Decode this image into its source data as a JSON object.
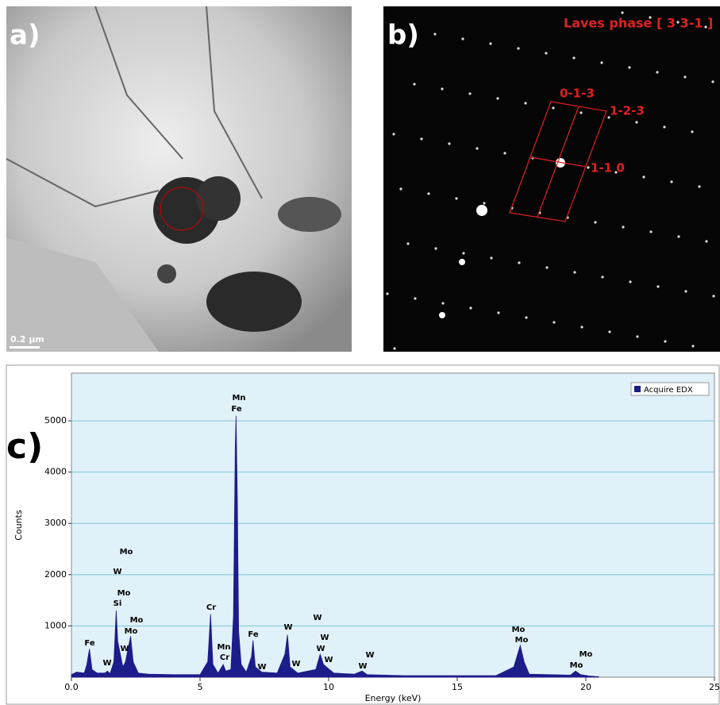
{
  "panels": {
    "a": {
      "label": "a)",
      "scale_bar": "0.2 µm"
    },
    "b": {
      "label": "b)",
      "title": "Laves phase [ 3 3-1 ]",
      "spots": [
        "0-1-3",
        "1-2-3",
        "1-1 0"
      ]
    },
    "c": {
      "label": "c)"
    }
  },
  "chart_data": {
    "type": "area",
    "xlabel": "Energy (keV)",
    "ylabel": "Counts",
    "xlim": [
      0,
      25
    ],
    "ylim": [
      0,
      5930
    ],
    "xticks": [
      {
        "value": 0,
        "label": "0.0"
      },
      5,
      10,
      15,
      20,
      25
    ],
    "yticks": [
      1000,
      2000,
      3000,
      4000,
      5000
    ],
    "grid": true,
    "legend": "upper right",
    "background": "#e1f1f9",
    "x": [
      0,
      0.2,
      0.5,
      0.6,
      0.7,
      0.8,
      1.0,
      1.3,
      1.4,
      1.5,
      1.65,
      1.74,
      1.8,
      1.9,
      2.0,
      2.1,
      2.3,
      2.4,
      2.6,
      3.0,
      4.0,
      5.0,
      5.3,
      5.41,
      5.5,
      5.7,
      5.9,
      6.0,
      6.2,
      6.3,
      6.37,
      6.4,
      6.45,
      6.5,
      6.6,
      6.8,
      7.0,
      7.06,
      7.15,
      7.4,
      8.0,
      8.3,
      8.4,
      8.5,
      8.8,
      9.5,
      9.67,
      9.8,
      9.96,
      10.2,
      11.0,
      11.3,
      11.5,
      13.0,
      16.5,
      17.2,
      17.45,
      17.6,
      17.8,
      19.4,
      19.6,
      19.8,
      20.2,
      20.5
    ],
    "series": [
      {
        "name": "Acquire EDX",
        "color": "#1c1c8a",
        "values": [
          50,
          100,
          80,
          250,
          550,
          150,
          80,
          80,
          120,
          70,
          300,
          1300,
          700,
          450,
          200,
          300,
          800,
          300,
          80,
          60,
          50,
          50,
          300,
          1230,
          250,
          80,
          250,
          120,
          150,
          1200,
          4500,
          5100,
          3500,
          900,
          250,
          100,
          400,
          720,
          200,
          100,
          80,
          450,
          830,
          200,
          80,
          150,
          450,
          250,
          180,
          80,
          60,
          120,
          50,
          30,
          30,
          200,
          620,
          300,
          60,
          40,
          120,
          50,
          20,
          10
        ]
      }
    ],
    "annotations": [
      "Fe",
      "W",
      "W",
      "Si",
      "Mo",
      "W",
      "Mo",
      "Mo",
      "Mo",
      "Cr",
      "Mn",
      "Cr",
      "Mn",
      "Fe",
      "Fe",
      "W",
      "W",
      "W",
      "W",
      "W",
      "W",
      "W",
      "W",
      "W",
      "Mo",
      "Mo",
      "Mo",
      "Mo"
    ]
  }
}
